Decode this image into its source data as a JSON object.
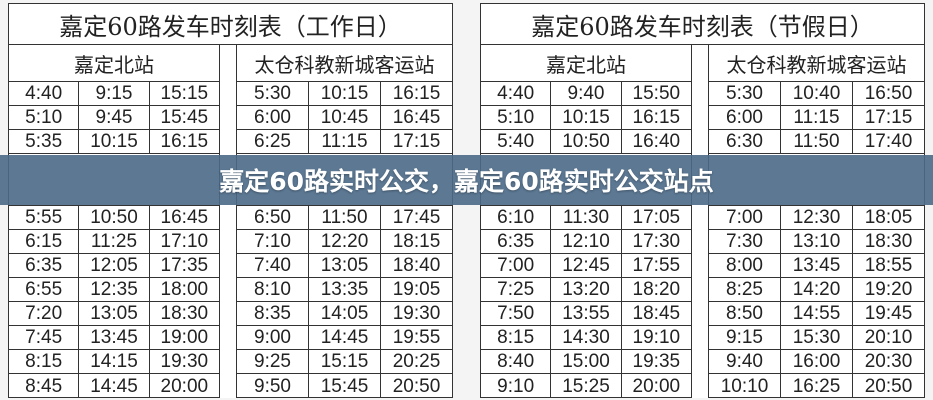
{
  "tables": [
    {
      "title": "嘉定60路发车时刻表（工作日）",
      "groups": [
        {
          "station": "嘉定北站",
          "rows": [
            [
              "4:40",
              "9:15",
              "15:15"
            ],
            [
              "5:10",
              "9:45",
              "15:45"
            ],
            [
              "5:35",
              "10:15",
              "16:15"
            ],
            [
              "5:55",
              "10:50",
              "16:45"
            ],
            [
              "6:15",
              "11:25",
              "17:10"
            ],
            [
              "6:35",
              "12:05",
              "17:35"
            ],
            [
              "6:55",
              "12:35",
              "18:00"
            ],
            [
              "7:20",
              "13:05",
              "18:30"
            ],
            [
              "7:45",
              "13:45",
              "19:00"
            ],
            [
              "8:15",
              "14:15",
              "19:30"
            ],
            [
              "8:45",
              "14:45",
              "20:00"
            ]
          ]
        },
        {
          "station": "太仓科教新城客运站",
          "rows": [
            [
              "5:30",
              "10:15",
              "16:15"
            ],
            [
              "6:00",
              "10:45",
              "16:45"
            ],
            [
              "6:25",
              "11:15",
              "17:15"
            ],
            [
              "6:50",
              "11:50",
              "17:45"
            ],
            [
              "7:10",
              "12:20",
              "18:15"
            ],
            [
              "7:40",
              "13:05",
              "18:40"
            ],
            [
              "8:10",
              "13:35",
              "19:05"
            ],
            [
              "8:35",
              "14:05",
              "19:30"
            ],
            [
              "9:00",
              "14:45",
              "19:55"
            ],
            [
              "9:25",
              "15:15",
              "20:25"
            ],
            [
              "9:50",
              "15:45",
              "20:50"
            ]
          ]
        }
      ]
    },
    {
      "title": "嘉定60路发车时刻表（节假日）",
      "groups": [
        {
          "station": "嘉定北站",
          "rows": [
            [
              "4:40",
              "9:40",
              "15:50"
            ],
            [
              "5:10",
              "10:15",
              "16:15"
            ],
            [
              "5:40",
              "10:50",
              "16:40"
            ],
            [
              "6:10",
              "11:30",
              "17:05"
            ],
            [
              "6:35",
              "12:10",
              "17:30"
            ],
            [
              "7:00",
              "12:45",
              "17:55"
            ],
            [
              "7:25",
              "13:20",
              "18:20"
            ],
            [
              "7:50",
              "13:55",
              "18:45"
            ],
            [
              "8:15",
              "14:30",
              "19:10"
            ],
            [
              "8:40",
              "15:00",
              "19:35"
            ],
            [
              "9:10",
              "15:25",
              "20:00"
            ]
          ]
        },
        {
          "station": "太仓科教新城客运站",
          "rows": [
            [
              "5:30",
              "10:40",
              "16:50"
            ],
            [
              "6:00",
              "11:15",
              "17:15"
            ],
            [
              "6:30",
              "11:50",
              "17:40"
            ],
            [
              "7:00",
              "12:30",
              "18:05"
            ],
            [
              "7:30",
              "13:10",
              "18:30"
            ],
            [
              "8:00",
              "13:45",
              "18:55"
            ],
            [
              "8:25",
              "14:20",
              "19:20"
            ],
            [
              "8:50",
              "14:55",
              "19:45"
            ],
            [
              "9:15",
              "15:30",
              "20:10"
            ],
            [
              "9:40",
              "16:00",
              "20:30"
            ],
            [
              "10:10",
              "16:25",
              "20:50"
            ]
          ]
        }
      ]
    }
  ],
  "banner": {
    "text": "嘉定60路实时公交，嘉定60路实时公交站点"
  }
}
